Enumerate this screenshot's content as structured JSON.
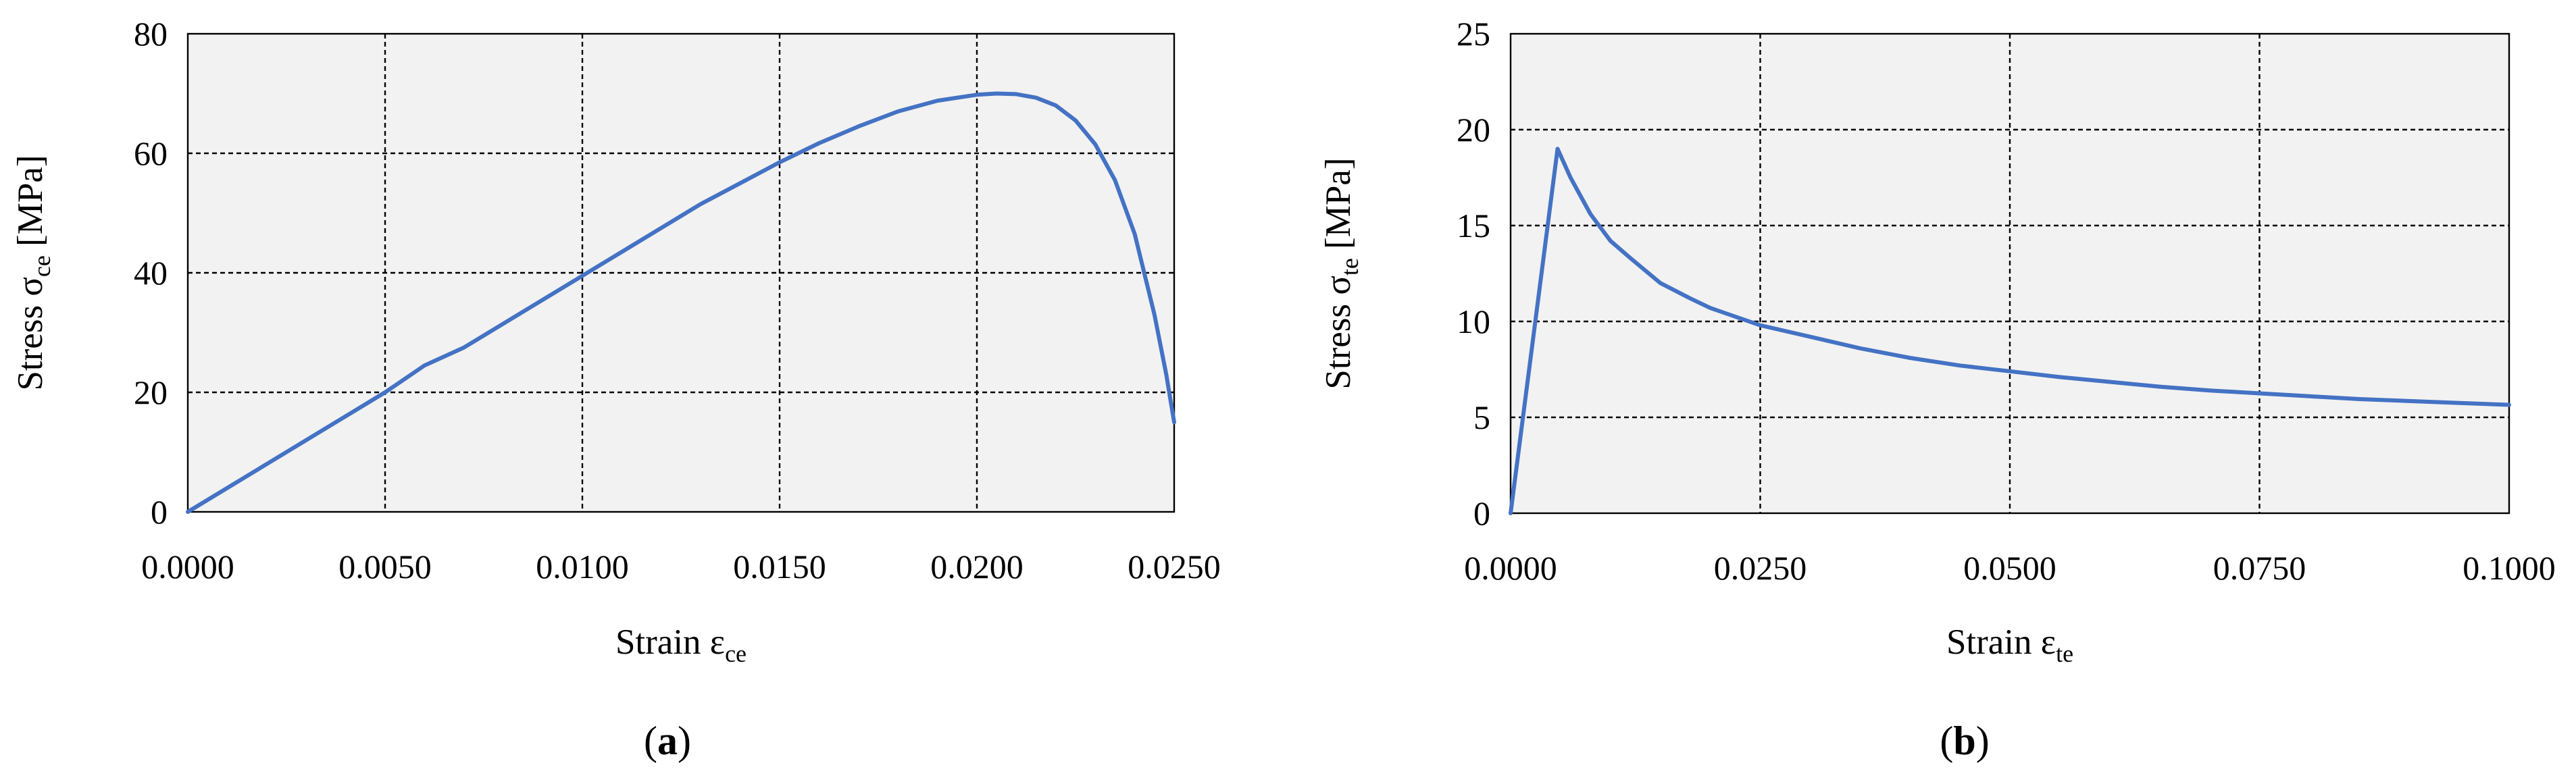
{
  "chart_data": [
    {
      "type": "line",
      "panel_label": "a",
      "xlabel": {
        "main": "Strain ε",
        "sub": "ce"
      },
      "ylabel": {
        "main": "Stress σ",
        "sub": "ce",
        "unit": " [MPa]"
      },
      "xlim": [
        0,
        0.025
      ],
      "ylim": [
        0,
        80
      ],
      "xticks": [
        0,
        0.005,
        0.01,
        0.015,
        0.02,
        0.025
      ],
      "xtick_labels": [
        "0.0000",
        "0.0050",
        "0.0100",
        "0.0150",
        "0.0200",
        "0.0250"
      ],
      "yticks": [
        0,
        20,
        40,
        60,
        80
      ],
      "ytick_labels": [
        "0",
        "20",
        "40",
        "60",
        "80"
      ],
      "grid": true,
      "series": [
        {
          "color": "#4472c4",
          "x": [
            0,
            0.002,
            0.004,
            0.005,
            0.006,
            0.007,
            0.008,
            0.009,
            0.01,
            0.011,
            0.012,
            0.013,
            0.014,
            0.015,
            0.016,
            0.017,
            0.018,
            0.019,
            0.02,
            0.0205,
            0.021,
            0.0215,
            0.022,
            0.0225,
            0.023,
            0.0235,
            0.024,
            0.0245,
            0.0248,
            0.025
          ],
          "y": [
            0,
            8,
            16,
            20,
            24.5,
            27.5,
            31.5,
            35.5,
            39.5,
            43.5,
            47.5,
            51.5,
            55,
            58.5,
            61.7,
            64.5,
            67,
            68.8,
            69.8,
            70,
            69.9,
            69.3,
            68,
            65.5,
            61.5,
            55.5,
            46.5,
            33,
            23,
            15
          ]
        }
      ]
    },
    {
      "type": "line",
      "panel_label": "b",
      "xlabel": {
        "main": "Strain ε",
        "sub": "te"
      },
      "ylabel": {
        "main": "Stress σ",
        "sub": "te",
        "unit": " [MPa]"
      },
      "xlim": [
        0,
        0.1
      ],
      "ylim": [
        0,
        25
      ],
      "xticks": [
        0,
        0.025,
        0.05,
        0.075,
        0.1
      ],
      "xtick_labels": [
        "0.0000",
        "0.0250",
        "0.0500",
        "0.0750",
        "0.1000"
      ],
      "yticks": [
        0,
        5,
        10,
        15,
        20,
        25
      ],
      "ytick_labels": [
        "0",
        "5",
        "10",
        "15",
        "20",
        "25"
      ],
      "grid": true,
      "series": [
        {
          "color": "#4472c4",
          "x": [
            0,
            0.0047,
            0.006,
            0.008,
            0.01,
            0.012,
            0.015,
            0.018,
            0.02,
            0.025,
            0.03,
            0.035,
            0.04,
            0.045,
            0.05,
            0.055,
            0.06,
            0.065,
            0.07,
            0.075,
            0.08,
            0.085,
            0.09,
            0.095,
            0.1
          ],
          "y": [
            0,
            19,
            17.5,
            15.6,
            14.2,
            13.3,
            12,
            11.2,
            10.7,
            9.8,
            9.2,
            8.6,
            8.1,
            7.7,
            7.4,
            7.1,
            6.85,
            6.6,
            6.4,
            6.25,
            6.1,
            5.95,
            5.85,
            5.75,
            5.65
          ]
        }
      ]
    }
  ]
}
